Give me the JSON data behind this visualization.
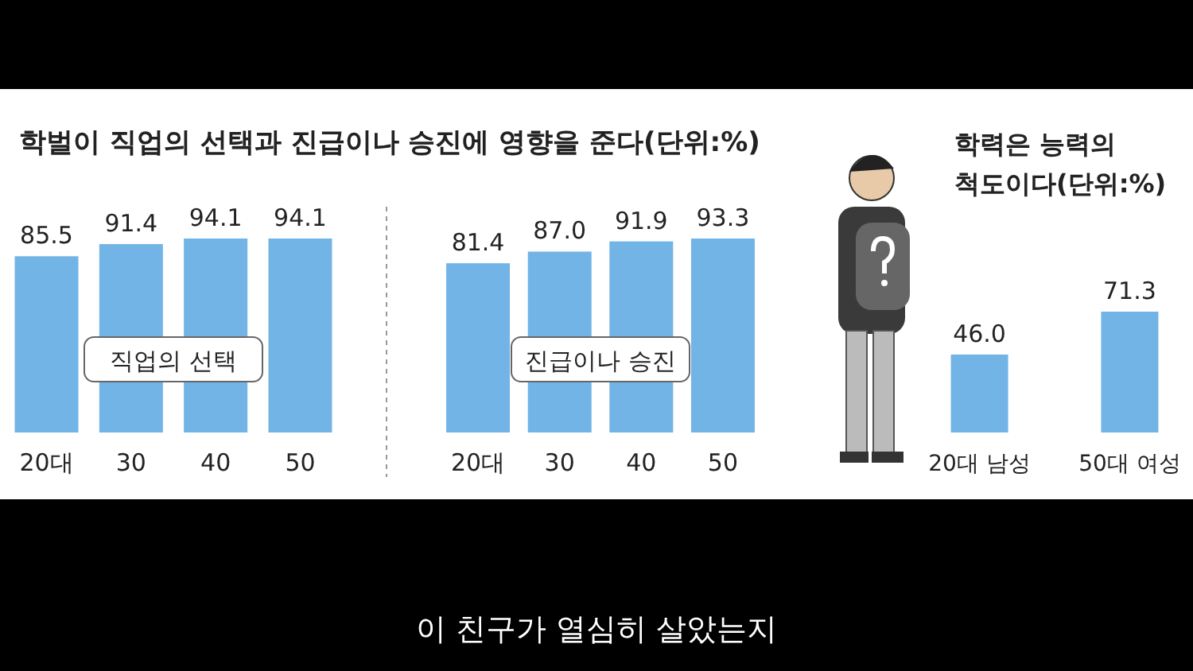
{
  "chart_data": [
    {
      "type": "bar",
      "title": "학벌이 직업의 선택과 진급이나 승진에 영향을 준다(단위:%)",
      "categories": [
        "20대",
        "30",
        "40",
        "50"
      ],
      "series": [
        {
          "name": "직업의 선택",
          "color": "#72b4e6",
          "values": [
            85.5,
            91.4,
            94.1,
            94.1
          ],
          "value_labels": [
            "85.5",
            "91.4",
            "94.1",
            "94.1"
          ]
        }
      ],
      "annotations": [
        "이 친구가 열심히 살았는지"
      ]
    },
    {
      "type": "bar",
      "categories": [
        "20대",
        "30",
        "40",
        "50"
      ],
      "series": [
        {
          "name": "진급이나 승진",
          "color": "#72b4e6",
          "values": [
            81.4,
            87.0,
            91.9,
            93.3
          ],
          "value_labels": [
            "81.4",
            "87.0",
            "91.9",
            "93.3"
          ]
        }
      ]
    },
    {
      "type": "bar",
      "title": "학력은 능력의\n척도이다(단위:%)",
      "categories": [
        "20대 남성",
        "50대 여성"
      ],
      "series": [
        {
          "color": "#72b4e6",
          "values": [
            46.0,
            71.3
          ],
          "value_labels": [
            "46.0",
            "71.3"
          ]
        }
      ]
    }
  ]
}
